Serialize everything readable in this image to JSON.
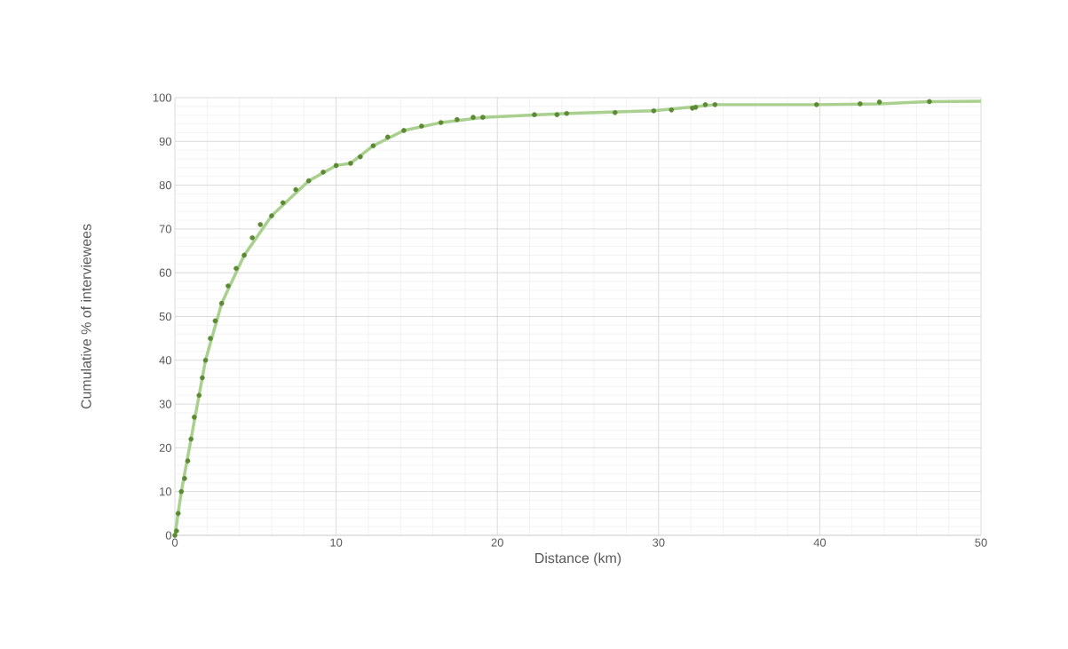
{
  "chart_data": {
    "type": "scatter",
    "xlabel": "Distance (km)",
    "ylabel": "Cumulative % of interviewees",
    "xlim": [
      0,
      50
    ],
    "ylim": [
      0,
      100
    ],
    "xticks": [
      0,
      10,
      20,
      30,
      40,
      50
    ],
    "yticks": [
      0,
      10,
      20,
      30,
      40,
      50,
      60,
      70,
      80,
      90,
      100
    ],
    "grid": true,
    "series": [
      {
        "type": "line",
        "marker": "none",
        "color": "#a9d08e",
        "x": [
          0,
          0.4,
          1.0,
          1.9,
          2.9,
          4.3,
          6.0,
          8.3,
          10.0,
          10.9,
          12.3,
          14.2,
          16.5,
          19.1,
          24.3,
          29.7,
          33.5,
          39.8,
          43.7,
          46.8,
          50
        ],
        "values": [
          0,
          10,
          22,
          40,
          53,
          64,
          73,
          81,
          84.5,
          85,
          89,
          92.5,
          94.3,
          95.5,
          96.4,
          97.0,
          98.4,
          98.4,
          98.6,
          99.1,
          99.2
        ]
      },
      {
        "marker": "circle",
        "color": "#5b8a32",
        "x": [
          0,
          0.1,
          0.2,
          0.4,
          0.6,
          0.8,
          1.0,
          1.2,
          1.5,
          1.7,
          1.9,
          2.2,
          2.5,
          2.9,
          3.3,
          3.8,
          4.3,
          4.8,
          5.3,
          6.0,
          6.7,
          7.5,
          8.3,
          9.2,
          10.0,
          10.9,
          11.5,
          12.3,
          13.2,
          14.2,
          15.3,
          16.5,
          17.5,
          18.5,
          19.1,
          22.3,
          23.7,
          24.3,
          27.3,
          29.7,
          30.8,
          32.1,
          32.3,
          32.9,
          33.5,
          39.8,
          42.5,
          43.7,
          46.8
        ],
        "values": [
          0,
          1,
          5,
          10,
          13,
          17,
          22,
          27,
          32,
          36,
          40,
          45,
          49,
          53,
          57,
          61,
          64,
          68,
          71,
          73,
          76,
          79,
          81,
          83,
          84.5,
          85,
          86.5,
          89,
          91,
          92.5,
          93.5,
          94.3,
          95,
          95.5,
          95.5,
          96.1,
          96.1,
          96.4,
          96.6,
          97.0,
          97.2,
          97.6,
          97.8,
          98.4,
          98.4,
          98.4,
          98.6,
          99.0,
          99.1
        ]
      }
    ]
  }
}
